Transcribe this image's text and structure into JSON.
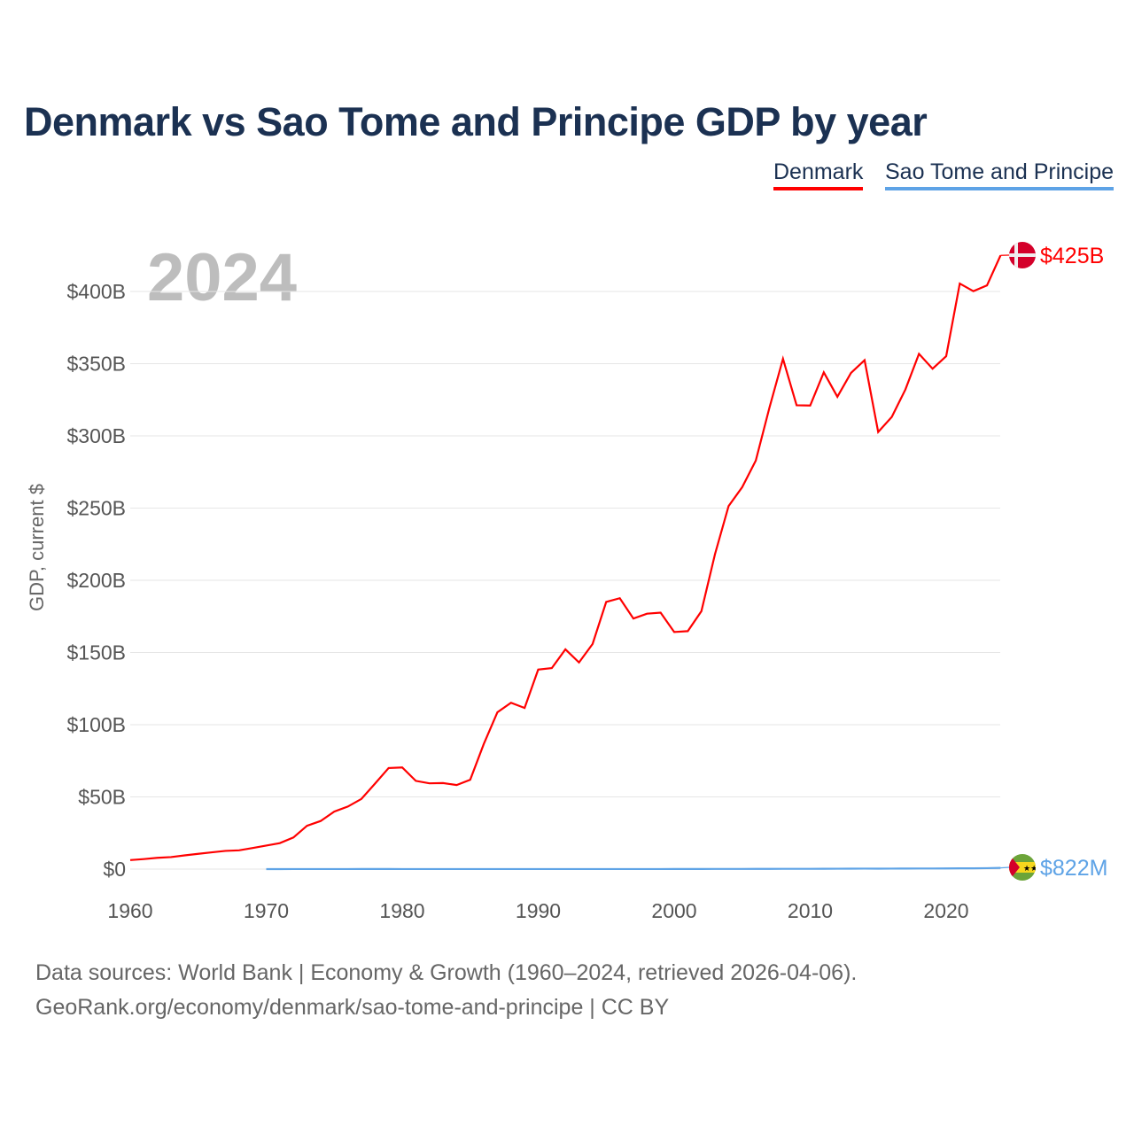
{
  "chart_data": {
    "type": "line",
    "title": "Denmark vs Sao Tome and Principe GDP by year",
    "ylabel": "GDP, current $",
    "xlabel": "",
    "year_label": "2024",
    "xlim": [
      1960,
      2024
    ],
    "ylim": [
      0,
      425
    ],
    "x_ticks": [
      1960,
      1970,
      1980,
      1990,
      2000,
      2010,
      2020
    ],
    "y_ticks": [
      {
        "v": 0,
        "label": "$0"
      },
      {
        "v": 50,
        "label": "$50B"
      },
      {
        "v": 100,
        "label": "$100B"
      },
      {
        "v": 150,
        "label": "$150B"
      },
      {
        "v": 200,
        "label": "$200B"
      },
      {
        "v": 250,
        "label": "$250B"
      },
      {
        "v": 300,
        "label": "$300B"
      },
      {
        "v": 350,
        "label": "$350B"
      },
      {
        "v": 400,
        "label": "$400B"
      }
    ],
    "grid": true,
    "legend_position": "top-right",
    "series": [
      {
        "name": "Denmark",
        "color": "#ff0000",
        "start": 1960,
        "end_label": "$425B",
        "values": [
          6.25,
          6.93,
          7.81,
          8.32,
          9.51,
          10.6,
          11.6,
          12.6,
          13.0,
          14.6,
          16.3,
          18.0,
          21.9,
          30.0,
          33.3,
          39.8,
          43.3,
          48.6,
          59.2,
          70.0,
          70.4,
          61.1,
          59.4,
          59.6,
          58.2,
          61.9,
          86.7,
          108.6,
          115.2,
          111.6,
          138.2,
          139.2,
          152.2,
          143.1,
          155.9,
          185.0,
          187.6,
          173.5,
          176.9,
          177.6,
          164.2,
          164.8,
          178.6,
          218.1,
          251.4,
          264.5,
          282.9,
          319.4,
          353.4,
          321.2,
          321.0,
          344.0,
          327.1,
          343.6,
          352.4,
          302.7,
          313.1,
          332.1,
          356.8,
          346.5,
          355.2,
          405.5,
          400.2,
          404.2,
          425.0
        ]
      },
      {
        "name": "Sao Tome and Principe",
        "color": "#5ea3e6",
        "start": 1970,
        "end_label": "$822M",
        "values": [
          0.02,
          0.02,
          0.03,
          0.03,
          0.04,
          0.05,
          0.05,
          0.06,
          0.07,
          0.08,
          0.05,
          0.05,
          0.05,
          0.05,
          0.05,
          0.05,
          0.05,
          0.05,
          0.05,
          0.05,
          0.05,
          0.05,
          0.05,
          0.05,
          0.05,
          0.05,
          0.05,
          0.05,
          0.05,
          0.05,
          0.08,
          0.08,
          0.09,
          0.1,
          0.11,
          0.13,
          0.15,
          0.16,
          0.19,
          0.19,
          0.2,
          0.25,
          0.27,
          0.31,
          0.35,
          0.32,
          0.35,
          0.38,
          0.41,
          0.43,
          0.47,
          0.52,
          0.55,
          0.64,
          0.822
        ]
      }
    ]
  },
  "source_line1": "Data sources: World Bank | Economy & Growth (1960–2024, retrieved 2026-04-06).",
  "source_line2": "GeoRank.org/economy/denmark/sao-tome-and-principe | CC BY"
}
